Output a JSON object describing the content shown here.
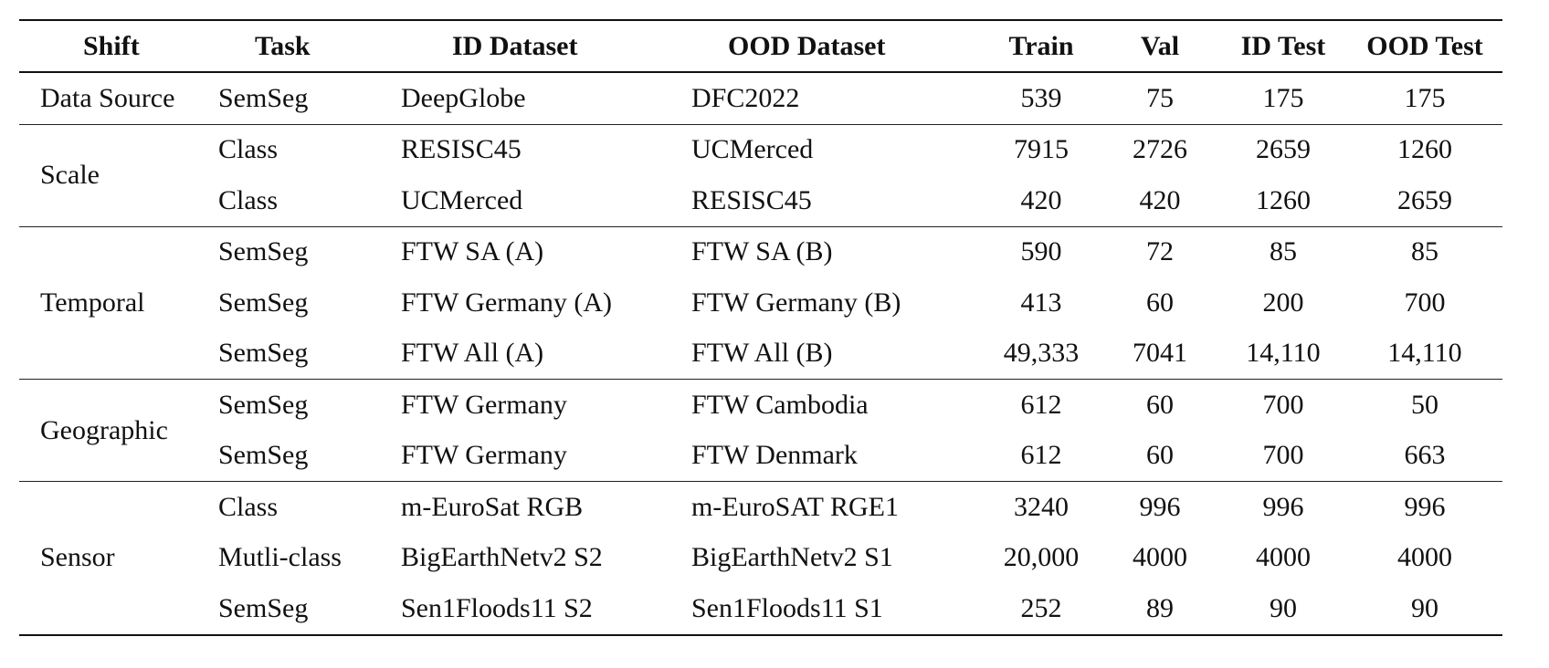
{
  "headers": [
    "Shift",
    "Task",
    "ID Dataset",
    "OOD Dataset",
    "Train",
    "Val",
    "ID Test",
    "OOD Test"
  ],
  "groups": [
    {
      "shift": "Data Source",
      "rows": [
        {
          "task": "SemSeg",
          "id": "DeepGlobe",
          "ood": "DFC2022",
          "train": "539",
          "val": "75",
          "id_test": "175",
          "ood_test": "175"
        }
      ]
    },
    {
      "shift": "Scale",
      "rows": [
        {
          "task": "Class",
          "id": "RESISC45",
          "ood": "UCMerced",
          "train": "7915",
          "val": "2726",
          "id_test": "2659",
          "ood_test": "1260"
        },
        {
          "task": "Class",
          "id": "UCMerced",
          "ood": "RESISC45",
          "train": "420",
          "val": "420",
          "id_test": "1260",
          "ood_test": "2659"
        }
      ]
    },
    {
      "shift": "Temporal",
      "rows": [
        {
          "task": "SemSeg",
          "id": "FTW SA (A)",
          "ood": "FTW SA (B)",
          "train": "590",
          "val": "72",
          "id_test": "85",
          "ood_test": "85"
        },
        {
          "task": "SemSeg",
          "id": "FTW Germany (A)",
          "ood": "FTW Germany (B)",
          "train": "413",
          "val": "60",
          "id_test": "200",
          "ood_test": "700"
        },
        {
          "task": "SemSeg",
          "id": "FTW All (A)",
          "ood": "FTW All (B)",
          "train": "49,333",
          "val": "7041",
          "id_test": "14,110",
          "ood_test": "14,110"
        }
      ]
    },
    {
      "shift": "Geographic",
      "rows": [
        {
          "task": "SemSeg",
          "id": "FTW Germany",
          "ood": "FTW Cambodia",
          "train": "612",
          "val": "60",
          "id_test": "700",
          "ood_test": "50"
        },
        {
          "task": "SemSeg",
          "id": "FTW Germany",
          "ood": "FTW Denmark",
          "train": "612",
          "val": "60",
          "id_test": "700",
          "ood_test": "663"
        }
      ]
    },
    {
      "shift": "Sensor",
      "rows": [
        {
          "task": "Class",
          "id": "m-EuroSat RGB",
          "ood": "m-EuroSAT RGE1",
          "train": "3240",
          "val": "996",
          "id_test": "996",
          "ood_test": "996"
        },
        {
          "task": "Mutli-class",
          "id": "BigEarthNetv2 S2",
          "ood": "BigEarthNetv2 S1",
          "train": "20,000",
          "val": "4000",
          "id_test": "4000",
          "ood_test": "4000"
        },
        {
          "task": "SemSeg",
          "id": "Sen1Floods11 S2",
          "ood": "Sen1Floods11 S1",
          "train": "252",
          "val": "89",
          "id_test": "90",
          "ood_test": "90"
        }
      ]
    }
  ]
}
